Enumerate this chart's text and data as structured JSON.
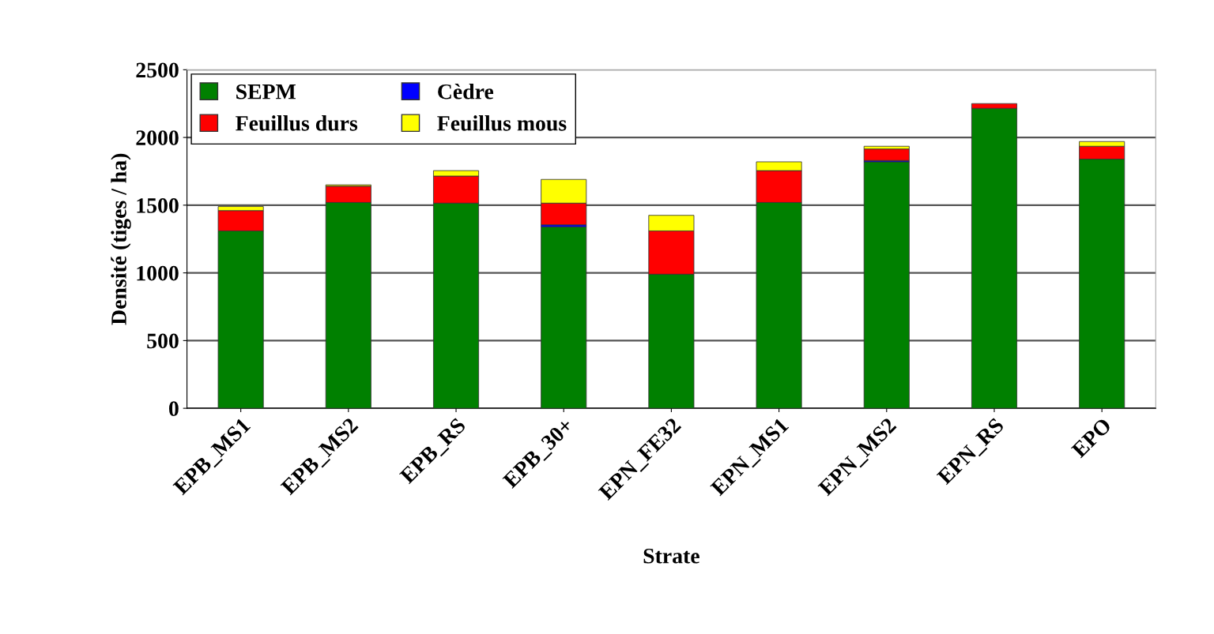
{
  "chart_data": {
    "type": "bar",
    "stacked": true,
    "xlabel": "Strate",
    "ylabel": "Densité (tiges / ha)",
    "categories": [
      "EPB_MS1",
      "EPB_MS2",
      "EPB_RS",
      "EPB_30+",
      "EPN_FE32",
      "EPN_MS1",
      "EPN_MS2",
      "EPN_RS",
      "EPO"
    ],
    "series": [
      {
        "name": "SEPM",
        "color": "#008000",
        "values": [
          1310,
          1520,
          1515,
          1340,
          990,
          1520,
          1820,
          2215,
          1840
        ]
      },
      {
        "name": "Cèdre",
        "color": "#0000ff",
        "values": [
          0,
          0,
          0,
          15,
          0,
          0,
          10,
          0,
          0
        ]
      },
      {
        "name": "Feuillus durs",
        "color": "#ff0000",
        "values": [
          150,
          120,
          200,
          160,
          320,
          235,
          85,
          35,
          95
        ]
      },
      {
        "name": "Feuillus mous",
        "color": "#ffff00",
        "values": [
          30,
          10,
          40,
          175,
          115,
          65,
          20,
          0,
          35
        ]
      }
    ],
    "ylim": [
      0,
      2500
    ],
    "yticks": [
      0,
      500,
      1000,
      1500,
      2000,
      2500
    ],
    "grid": "y",
    "legend": "top left"
  }
}
